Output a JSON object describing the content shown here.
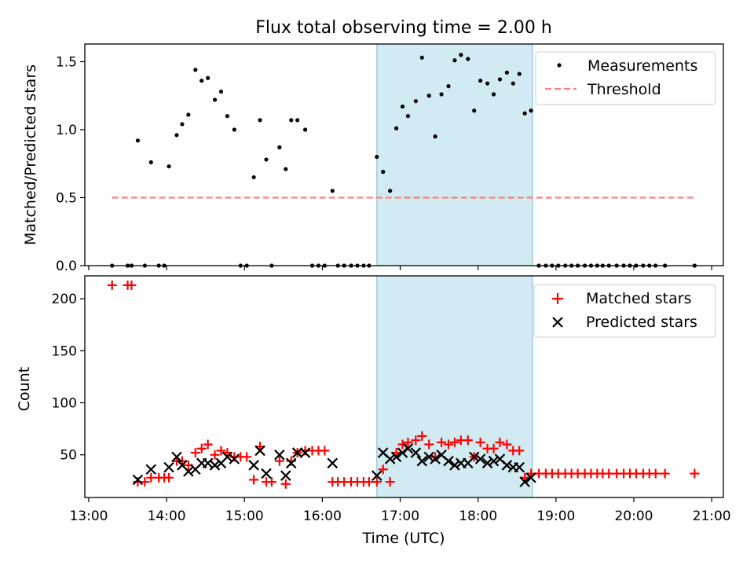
{
  "title": "Flux total observing time = 2.00 h",
  "colors": {
    "band": "#add8e6",
    "threshold": "#ff8080",
    "matched": "#ff0000",
    "predicted": "#000000",
    "measurement": "#000000"
  },
  "x_ticks": [
    "13:00",
    "14:00",
    "15:00",
    "16:00",
    "17:00",
    "18:00",
    "19:00",
    "20:00",
    "21:00"
  ],
  "chart_data": [
    {
      "type": "scatter",
      "ylabel": "Matched/Predicted stars",
      "xlabel": "",
      "xlim": [
        12.95,
        21.15
      ],
      "ylim": [
        0,
        1.63
      ],
      "yticks": [
        "0.0",
        "0.5",
        "1.0",
        "1.5"
      ],
      "legend_placement": "top-right",
      "highlight_band": [
        16.7,
        18.7
      ],
      "series": [
        {
          "name": "Measurements",
          "marker": "dot",
          "points": [
            [
              13.3,
              0
            ],
            [
              13.5,
              0
            ],
            [
              13.55,
              0
            ],
            [
              13.63,
              0.92
            ],
            [
              13.72,
              0
            ],
            [
              13.8,
              0.76
            ],
            [
              13.9,
              0
            ],
            [
              13.97,
              0
            ],
            [
              14.03,
              0.73
            ],
            [
              14.13,
              0.96
            ],
            [
              14.2,
              1.04
            ],
            [
              14.28,
              1.11
            ],
            [
              14.37,
              1.44
            ],
            [
              14.45,
              1.36
            ],
            [
              14.53,
              1.38
            ],
            [
              14.62,
              1.22
            ],
            [
              14.7,
              1.28
            ],
            [
              14.78,
              1.1
            ],
            [
              14.87,
              1.0
            ],
            [
              14.95,
              0
            ],
            [
              15.03,
              0
            ],
            [
              15.12,
              0.65
            ],
            [
              15.2,
              1.07
            ],
            [
              15.28,
              0.78
            ],
            [
              15.35,
              0
            ],
            [
              15.45,
              0.87
            ],
            [
              15.53,
              0.71
            ],
            [
              15.6,
              1.07
            ],
            [
              15.68,
              1.07
            ],
            [
              15.78,
              1.0
            ],
            [
              15.87,
              0
            ],
            [
              15.95,
              0
            ],
            [
              16.03,
              0
            ],
            [
              16.13,
              0.55
            ],
            [
              16.2,
              0
            ],
            [
              16.28,
              0
            ],
            [
              16.37,
              0
            ],
            [
              16.45,
              0
            ],
            [
              16.53,
              0
            ],
            [
              16.6,
              0
            ],
            [
              16.7,
              0.8
            ],
            [
              16.78,
              0.69
            ],
            [
              16.87,
              0.55
            ],
            [
              16.95,
              1.01
            ],
            [
              17.03,
              1.17
            ],
            [
              17.1,
              1.1
            ],
            [
              17.2,
              1.21
            ],
            [
              17.28,
              1.53
            ],
            [
              17.37,
              1.25
            ],
            [
              17.45,
              0.95
            ],
            [
              17.53,
              1.26
            ],
            [
              17.62,
              1.32
            ],
            [
              17.7,
              1.51
            ],
            [
              17.78,
              1.55
            ],
            [
              17.87,
              1.52
            ],
            [
              17.95,
              1.14
            ],
            [
              18.03,
              1.36
            ],
            [
              18.12,
              1.34
            ],
            [
              18.2,
              1.26
            ],
            [
              18.28,
              1.37
            ],
            [
              18.37,
              1.42
            ],
            [
              18.45,
              1.34
            ],
            [
              18.53,
              1.41
            ],
            [
              18.6,
              1.12
            ],
            [
              18.68,
              1.14
            ],
            [
              18.78,
              0
            ],
            [
              18.87,
              0
            ],
            [
              18.95,
              0
            ],
            [
              19.03,
              0
            ],
            [
              19.12,
              0
            ],
            [
              19.2,
              0
            ],
            [
              19.28,
              0
            ],
            [
              19.37,
              0
            ],
            [
              19.45,
              0
            ],
            [
              19.53,
              0
            ],
            [
              19.6,
              0
            ],
            [
              19.68,
              0
            ],
            [
              19.78,
              0
            ],
            [
              19.87,
              0
            ],
            [
              19.95,
              0
            ],
            [
              20.03,
              0
            ],
            [
              20.12,
              0
            ],
            [
              20.2,
              0
            ],
            [
              20.28,
              0
            ],
            [
              20.4,
              0
            ],
            [
              20.78,
              0
            ]
          ]
        },
        {
          "name": "Threshold",
          "marker": "dashed-line",
          "points": [
            [
              13.3,
              0.5
            ],
            [
              20.78,
              0.5
            ]
          ]
        }
      ]
    },
    {
      "type": "scatter",
      "ylabel": "Count",
      "xlabel": "Time (UTC)",
      "xlim": [
        12.95,
        21.15
      ],
      "ylim": [
        9,
        222
      ],
      "yticks": [
        "50",
        "100",
        "150",
        "200"
      ],
      "legend_placement": "top-right",
      "highlight_band": [
        16.7,
        18.7
      ],
      "series": [
        {
          "name": "Matched stars",
          "marker": "plus",
          "points": [
            [
              13.3,
              213
            ],
            [
              13.5,
              213
            ],
            [
              13.55,
              213
            ],
            [
              13.63,
              24
            ],
            [
              13.72,
              24
            ],
            [
              13.8,
              28
            ],
            [
              13.9,
              28
            ],
            [
              13.97,
              28
            ],
            [
              14.03,
              28
            ],
            [
              14.13,
              44
            ],
            [
              14.2,
              44
            ],
            [
              14.28,
              40
            ],
            [
              14.37,
              52
            ],
            [
              14.45,
              56
            ],
            [
              14.53,
              60
            ],
            [
              14.62,
              50
            ],
            [
              14.7,
              54
            ],
            [
              14.78,
              52
            ],
            [
              14.87,
              48
            ],
            [
              14.95,
              48
            ],
            [
              15.03,
              48
            ],
            [
              15.12,
              26
            ],
            [
              15.2,
              58
            ],
            [
              15.28,
              24
            ],
            [
              15.35,
              24
            ],
            [
              15.45,
              44
            ],
            [
              15.53,
              22
            ],
            [
              15.6,
              44
            ],
            [
              15.68,
              52
            ],
            [
              15.78,
              54
            ],
            [
              15.87,
              54
            ],
            [
              15.95,
              54
            ],
            [
              16.03,
              54
            ],
            [
              16.13,
              24
            ],
            [
              16.2,
              24
            ],
            [
              16.28,
              24
            ],
            [
              16.37,
              24
            ],
            [
              16.45,
              24
            ],
            [
              16.53,
              24
            ],
            [
              16.6,
              24
            ],
            [
              16.7,
              24
            ],
            [
              16.78,
              36
            ],
            [
              16.87,
              24
            ],
            [
              16.95,
              52
            ],
            [
              17.03,
              60
            ],
            [
              17.1,
              62
            ],
            [
              17.2,
              64
            ],
            [
              17.28,
              68
            ],
            [
              17.37,
              60
            ],
            [
              17.45,
              48
            ],
            [
              17.53,
              62
            ],
            [
              17.62,
              60
            ],
            [
              17.7,
              62
            ],
            [
              17.78,
              64
            ],
            [
              17.87,
              64
            ],
            [
              17.95,
              48
            ],
            [
              18.03,
              62
            ],
            [
              18.12,
              56
            ],
            [
              18.2,
              56
            ],
            [
              18.28,
              62
            ],
            [
              18.37,
              60
            ],
            [
              18.45,
              54
            ],
            [
              18.53,
              54
            ],
            [
              18.6,
              28
            ],
            [
              18.68,
              32
            ],
            [
              18.78,
              32
            ],
            [
              18.87,
              32
            ],
            [
              18.95,
              32
            ],
            [
              19.03,
              32
            ],
            [
              19.12,
              32
            ],
            [
              19.2,
              32
            ],
            [
              19.28,
              32
            ],
            [
              19.37,
              32
            ],
            [
              19.45,
              32
            ],
            [
              19.53,
              32
            ],
            [
              19.6,
              32
            ],
            [
              19.68,
              32
            ],
            [
              19.78,
              32
            ],
            [
              19.87,
              32
            ],
            [
              19.95,
              32
            ],
            [
              20.03,
              32
            ],
            [
              20.12,
              32
            ],
            [
              20.2,
              32
            ],
            [
              20.28,
              32
            ],
            [
              20.4,
              32
            ],
            [
              20.78,
              32
            ]
          ]
        },
        {
          "name": "Predicted stars",
          "marker": "x",
          "points": [
            [
              13.63,
              26
            ],
            [
              13.8,
              36
            ],
            [
              14.03,
              38
            ],
            [
              14.13,
              48
            ],
            [
              14.2,
              40
            ],
            [
              14.28,
              34
            ],
            [
              14.37,
              36
            ],
            [
              14.45,
              42
            ],
            [
              14.53,
              42
            ],
            [
              14.62,
              40
            ],
            [
              14.7,
              42
            ],
            [
              14.78,
              48
            ],
            [
              14.87,
              46
            ],
            [
              15.12,
              40
            ],
            [
              15.2,
              54
            ],
            [
              15.28,
              32
            ],
            [
              15.45,
              50
            ],
            [
              15.53,
              30
            ],
            [
              15.6,
              42
            ],
            [
              15.68,
              52
            ],
            [
              15.78,
              52
            ],
            [
              16.13,
              42
            ],
            [
              16.7,
              30
            ],
            [
              16.78,
              52
            ],
            [
              16.87,
              46
            ],
            [
              16.95,
              48
            ],
            [
              17.03,
              52
            ],
            [
              17.1,
              56
            ],
            [
              17.2,
              52
            ],
            [
              17.28,
              44
            ],
            [
              17.37,
              48
            ],
            [
              17.45,
              46
            ],
            [
              17.53,
              50
            ],
            [
              17.62,
              44
            ],
            [
              17.7,
              40
            ],
            [
              17.78,
              42
            ],
            [
              17.87,
              42
            ],
            [
              17.95,
              48
            ],
            [
              18.03,
              46
            ],
            [
              18.12,
              42
            ],
            [
              18.2,
              44
            ],
            [
              18.28,
              46
            ],
            [
              18.37,
              40
            ],
            [
              18.45,
              38
            ],
            [
              18.53,
              38
            ],
            [
              18.6,
              24
            ],
            [
              18.68,
              28
            ]
          ]
        }
      ]
    }
  ]
}
